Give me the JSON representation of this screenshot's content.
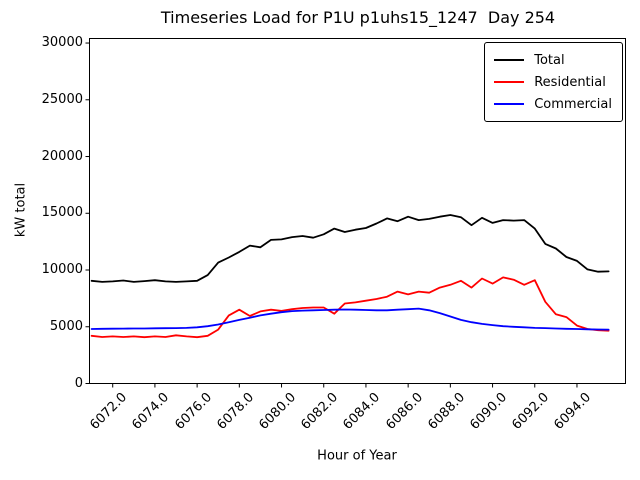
{
  "chart_data": {
    "type": "line",
    "title": "Timeseries Load for P1U p1uhs15_1247  Day 254",
    "xlabel": "Hour of Year",
    "ylabel": "kW total",
    "xlim": [
      6070.9,
      6096.3
    ],
    "ylim": [
      0,
      30400
    ],
    "grid": false,
    "legend_position": "upper right",
    "yticks": [
      0,
      5000,
      10000,
      15000,
      20000,
      25000,
      30000
    ],
    "ytick_labels": [
      "0",
      "5000",
      "10000",
      "15000",
      "20000",
      "25000",
      "30000"
    ],
    "xticks": [
      6072,
      6074,
      6076,
      6078,
      6080,
      6082,
      6084,
      6086,
      6088,
      6090,
      6092,
      6094
    ],
    "xtick_labels": [
      "6072.0",
      "6074.0",
      "6076.0",
      "6078.0",
      "6080.0",
      "6082.0",
      "6084.0",
      "6086.0",
      "6088.0",
      "6090.0",
      "6092.0",
      "6094.0"
    ],
    "x": [
      6071.0,
      6071.5,
      6072.0,
      6072.5,
      6073.0,
      6073.5,
      6074.0,
      6074.5,
      6075.0,
      6075.5,
      6076.0,
      6076.5,
      6077.0,
      6077.5,
      6078.0,
      6078.5,
      6079.0,
      6079.5,
      6080.0,
      6080.5,
      6081.0,
      6081.5,
      6082.0,
      6082.5,
      6083.0,
      6083.5,
      6084.0,
      6084.5,
      6085.0,
      6085.5,
      6086.0,
      6086.5,
      6087.0,
      6087.5,
      6088.0,
      6088.5,
      6089.0,
      6089.5,
      6090.0,
      6090.5,
      6091.0,
      6091.5,
      6092.0,
      6092.5,
      6093.0,
      6093.5,
      6094.0,
      6094.5,
      6095.0,
      6095.5
    ],
    "series": [
      {
        "name": "Total",
        "color": "#000000",
        "values": [
          9050,
          8950,
          9000,
          9080,
          8950,
          9020,
          9100,
          9000,
          8950,
          9000,
          9050,
          9550,
          10650,
          11100,
          11600,
          12150,
          12000,
          12650,
          12700,
          12900,
          13000,
          12850,
          13150,
          13650,
          13350,
          13550,
          13700,
          14100,
          14550,
          14300,
          14700,
          14400,
          14500,
          14700,
          14850,
          14650,
          13950,
          14600,
          14150,
          14400,
          14350,
          14400,
          13650,
          12300,
          11900,
          11150,
          10800,
          10050,
          9850,
          9880
        ]
      },
      {
        "name": "Residential",
        "color": "#ff0000",
        "values": [
          4200,
          4100,
          4150,
          4100,
          4150,
          4080,
          4150,
          4100,
          4250,
          4150,
          4080,
          4200,
          4750,
          6000,
          6500,
          5950,
          6350,
          6500,
          6400,
          6550,
          6650,
          6700,
          6700,
          6150,
          7050,
          7150,
          7300,
          7450,
          7650,
          8100,
          7850,
          8100,
          8000,
          8450,
          8700,
          9050,
          8450,
          9250,
          8800,
          9350,
          9150,
          8700,
          9100,
          7200,
          6100,
          5850,
          5100,
          4800,
          4700,
          4650
        ]
      },
      {
        "name": "Commercial",
        "color": "#0000ff",
        "values": [
          4800,
          4820,
          4830,
          4840,
          4850,
          4850,
          4860,
          4870,
          4880,
          4900,
          4950,
          5050,
          5200,
          5400,
          5600,
          5800,
          6000,
          6150,
          6280,
          6380,
          6420,
          6450,
          6480,
          6500,
          6520,
          6500,
          6480,
          6450,
          6450,
          6500,
          6550,
          6600,
          6450,
          6200,
          5900,
          5600,
          5400,
          5250,
          5150,
          5050,
          5000,
          4950,
          4900,
          4880,
          4850,
          4820,
          4800,
          4780,
          4760,
          4750
        ]
      }
    ]
  }
}
